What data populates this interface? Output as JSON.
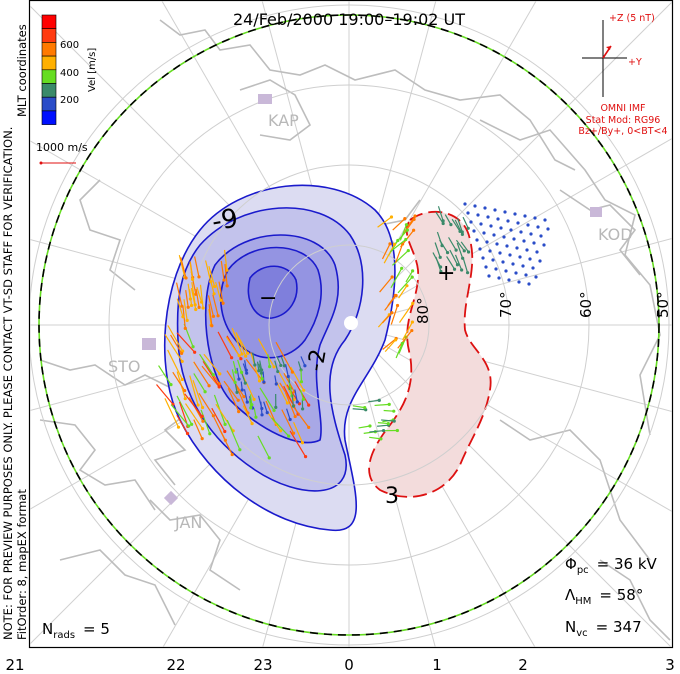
{
  "title": "24/Feb/2000 19:00–19:02 UT",
  "side_note": {
    "line1": "NOTE: FOR PREVIEW PURPOSES ONLY. PLEASE CONTACT VT-SD STAFF FOR VERIFICATION.",
    "line2_bottom": "FitOrder: 8, mapEX format",
    "line2_top": "MLT coordinates"
  },
  "colorbar": {
    "label": "Vel [m/s]",
    "ticks": [
      "600",
      "400",
      "200"
    ],
    "colors": [
      "#ff0000",
      "#ff3a10",
      "#ff7a00",
      "#ffb000",
      "#66dd22",
      "#3a8a6a",
      "#2a4cc8",
      "#0010ff"
    ]
  },
  "scale_vector": {
    "label": "1000 m/s"
  },
  "imf": {
    "z_label": "+Z (5 nT)",
    "y_label": "+Y",
    "source": "OMNI IMF",
    "stat_mod": "Stat Mod: RG96",
    "condition": "Bz+/By+, 0<BT<4"
  },
  "latitude_labels": [
    "80°",
    "70°",
    "60°",
    "50°"
  ],
  "stations": [
    "KAP",
    "KOD",
    "STO",
    "JAN"
  ],
  "contour_labels": {
    "neg": "-9",
    "neg2": "-2",
    "pos": "3",
    "min_marker": "−",
    "max_marker": "+"
  },
  "stats": {
    "phi_pc_symbol": "Φ",
    "phi_pc_sub": "pc",
    "phi_pc_value": "= 36 kV",
    "lambda_hm_symbol": "Λ",
    "lambda_hm_sub": "HM",
    "lambda_hm_value": "= 58°",
    "n_vc_symbol": "N",
    "n_vc_sub": "vc",
    "n_vc_value": "= 347",
    "n_rads_symbol": "N",
    "n_rads_sub": "rads",
    "n_rads_value": "= 5"
  },
  "mlt_labels": [
    "21",
    "22",
    "23",
    "0",
    "1",
    "2",
    "3"
  ],
  "colors": {
    "text_red": "#e01010",
    "neg_contour": "#1a1acc",
    "pos_contour": "#dd1111"
  }
}
